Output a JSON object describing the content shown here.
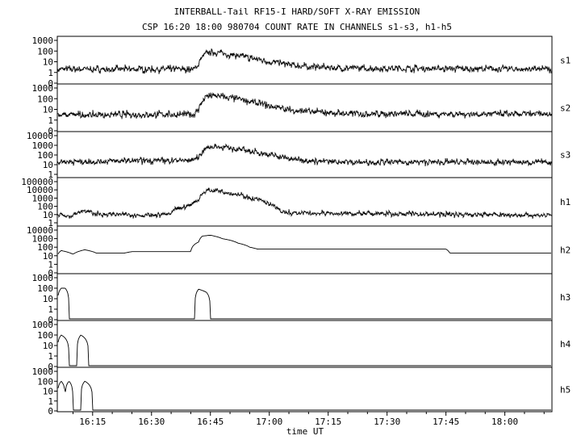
{
  "header": {
    "title_line1": "INTERBALL-Tail RF15-I HARD/SOFT X-RAY EMISSION",
    "title_line2": "CSP 16:20 18:00 980704  COUNT RATE IN CHANNELS s1-s3, h1-h5"
  },
  "chart_data": {
    "type": "line",
    "title": "INTERBALL-Tail RF15-I HARD/SOFT X-RAY EMISSION",
    "subtitle": "CSP 16:20 18:00 980704  COUNT RATE IN CHANNELS s1-s3, h1-h5",
    "xlabel": "time UT",
    "x_tick_labels": [
      "16:15",
      "16:30",
      "16:45",
      "17:00",
      "17:15",
      "17:30",
      "17:45",
      "18:00"
    ],
    "x_tick_minutes": [
      975,
      990,
      1005,
      1020,
      1035,
      1050,
      1065,
      1080
    ],
    "xlim_minutes": [
      966,
      1092
    ],
    "y_scale": "log",
    "series": [
      {
        "name": "s1",
        "y_tick_labels": [
          "1000",
          "100",
          "10",
          "1",
          "0"
        ],
        "profile": [
          [
            966,
            2
          ],
          [
            1001,
            2
          ],
          [
            1002,
            6
          ],
          [
            1003,
            25
          ],
          [
            1004,
            60
          ],
          [
            1006,
            80
          ],
          [
            1010,
            45
          ],
          [
            1015,
            22
          ],
          [
            1020,
            10
          ],
          [
            1025,
            5
          ],
          [
            1030,
            3.5
          ],
          [
            1038,
            2.5
          ],
          [
            1092,
            2
          ]
        ]
      },
      {
        "name": "s2",
        "y_tick_labels": [
          "1000",
          "100",
          "10",
          "1",
          "0"
        ],
        "profile": [
          [
            966,
            3
          ],
          [
            1001,
            3.5
          ],
          [
            1002,
            10
          ],
          [
            1003,
            50
          ],
          [
            1004,
            150
          ],
          [
            1006,
            200
          ],
          [
            1010,
            120
          ],
          [
            1015,
            50
          ],
          [
            1020,
            20
          ],
          [
            1025,
            9
          ],
          [
            1030,
            6
          ],
          [
            1040,
            4
          ],
          [
            1092,
            3.5
          ]
        ]
      },
      {
        "name": "s3",
        "y_tick_labels": [
          "10000",
          "1000",
          "100",
          "10",
          "1"
        ],
        "profile": [
          [
            966,
            20
          ],
          [
            1000,
            28
          ],
          [
            1002,
            50
          ],
          [
            1003,
            200
          ],
          [
            1004,
            600
          ],
          [
            1006,
            800
          ],
          [
            1010,
            500
          ],
          [
            1015,
            250
          ],
          [
            1020,
            100
          ],
          [
            1025,
            40
          ],
          [
            1032,
            22
          ],
          [
            1045,
            18
          ],
          [
            1092,
            18
          ]
        ]
      },
      {
        "name": "h1",
        "y_tick_labels": [
          "100000",
          "10000",
          "1000",
          "100",
          "10",
          "1"
        ],
        "profile": [
          [
            966,
            5
          ],
          [
            967,
            15
          ],
          [
            968,
            5
          ],
          [
            970,
            8
          ],
          [
            973,
            30
          ],
          [
            975,
            12
          ],
          [
            990,
            8
          ],
          [
            995,
            12
          ],
          [
            998,
            80
          ],
          [
            1000,
            150
          ],
          [
            1002,
            600
          ],
          [
            1003,
            3000
          ],
          [
            1004,
            8000
          ],
          [
            1006,
            10000
          ],
          [
            1010,
            4000
          ],
          [
            1015,
            1000
          ],
          [
            1020,
            150
          ],
          [
            1023,
            20
          ],
          [
            1026,
            15
          ],
          [
            1092,
            8
          ]
        ]
      },
      {
        "name": "h2",
        "y_tick_labels": [
          "10000",
          "1000",
          "100",
          "10",
          "1",
          "0"
        ],
        "profile": [
          [
            966,
            10
          ],
          [
            967,
            40
          ],
          [
            970,
            15
          ],
          [
            973,
            50
          ],
          [
            976,
            20
          ],
          [
            983,
            20
          ],
          [
            985,
            30
          ],
          [
            990,
            30
          ],
          [
            1000,
            30
          ],
          [
            1002,
            400
          ],
          [
            1003,
            2000
          ],
          [
            1005,
            2500
          ],
          [
            1008,
            1000
          ],
          [
            1012,
            300
          ],
          [
            1015,
            100
          ],
          [
            1017,
            60
          ],
          [
            1065,
            60
          ],
          [
            1066,
            20
          ],
          [
            1092,
            20
          ]
        ]
      },
      {
        "name": "h3",
        "y_tick_labels": [
          "1000",
          "100",
          "10",
          "1",
          "0"
        ],
        "profile": [
          [
            966,
            0
          ],
          [
            967,
            100
          ],
          [
            968,
            100
          ],
          [
            969,
            0
          ],
          [
            1001,
            0
          ],
          [
            1002,
            80
          ],
          [
            1004,
            40
          ],
          [
            1005,
            0
          ],
          [
            1092,
            0
          ]
        ]
      },
      {
        "name": "h4",
        "y_tick_labels": [
          "1000",
          "100",
          "10",
          "1",
          "0"
        ],
        "profile": [
          [
            966,
            0
          ],
          [
            967,
            100
          ],
          [
            969,
            0
          ],
          [
            971,
            0
          ],
          [
            972,
            100
          ],
          [
            974,
            0
          ],
          [
            1092,
            0
          ]
        ]
      },
      {
        "name": "h5",
        "y_tick_labels": [
          "1000",
          "100",
          "10",
          "1",
          "0"
        ],
        "profile": [
          [
            966,
            0
          ],
          [
            967,
            100
          ],
          [
            968,
            3
          ],
          [
            969,
            100
          ],
          [
            970,
            0
          ],
          [
            972,
            0
          ],
          [
            973,
            100
          ],
          [
            975,
            0
          ],
          [
            1092,
            0
          ]
        ]
      }
    ],
    "grid": false,
    "legend": "none"
  }
}
